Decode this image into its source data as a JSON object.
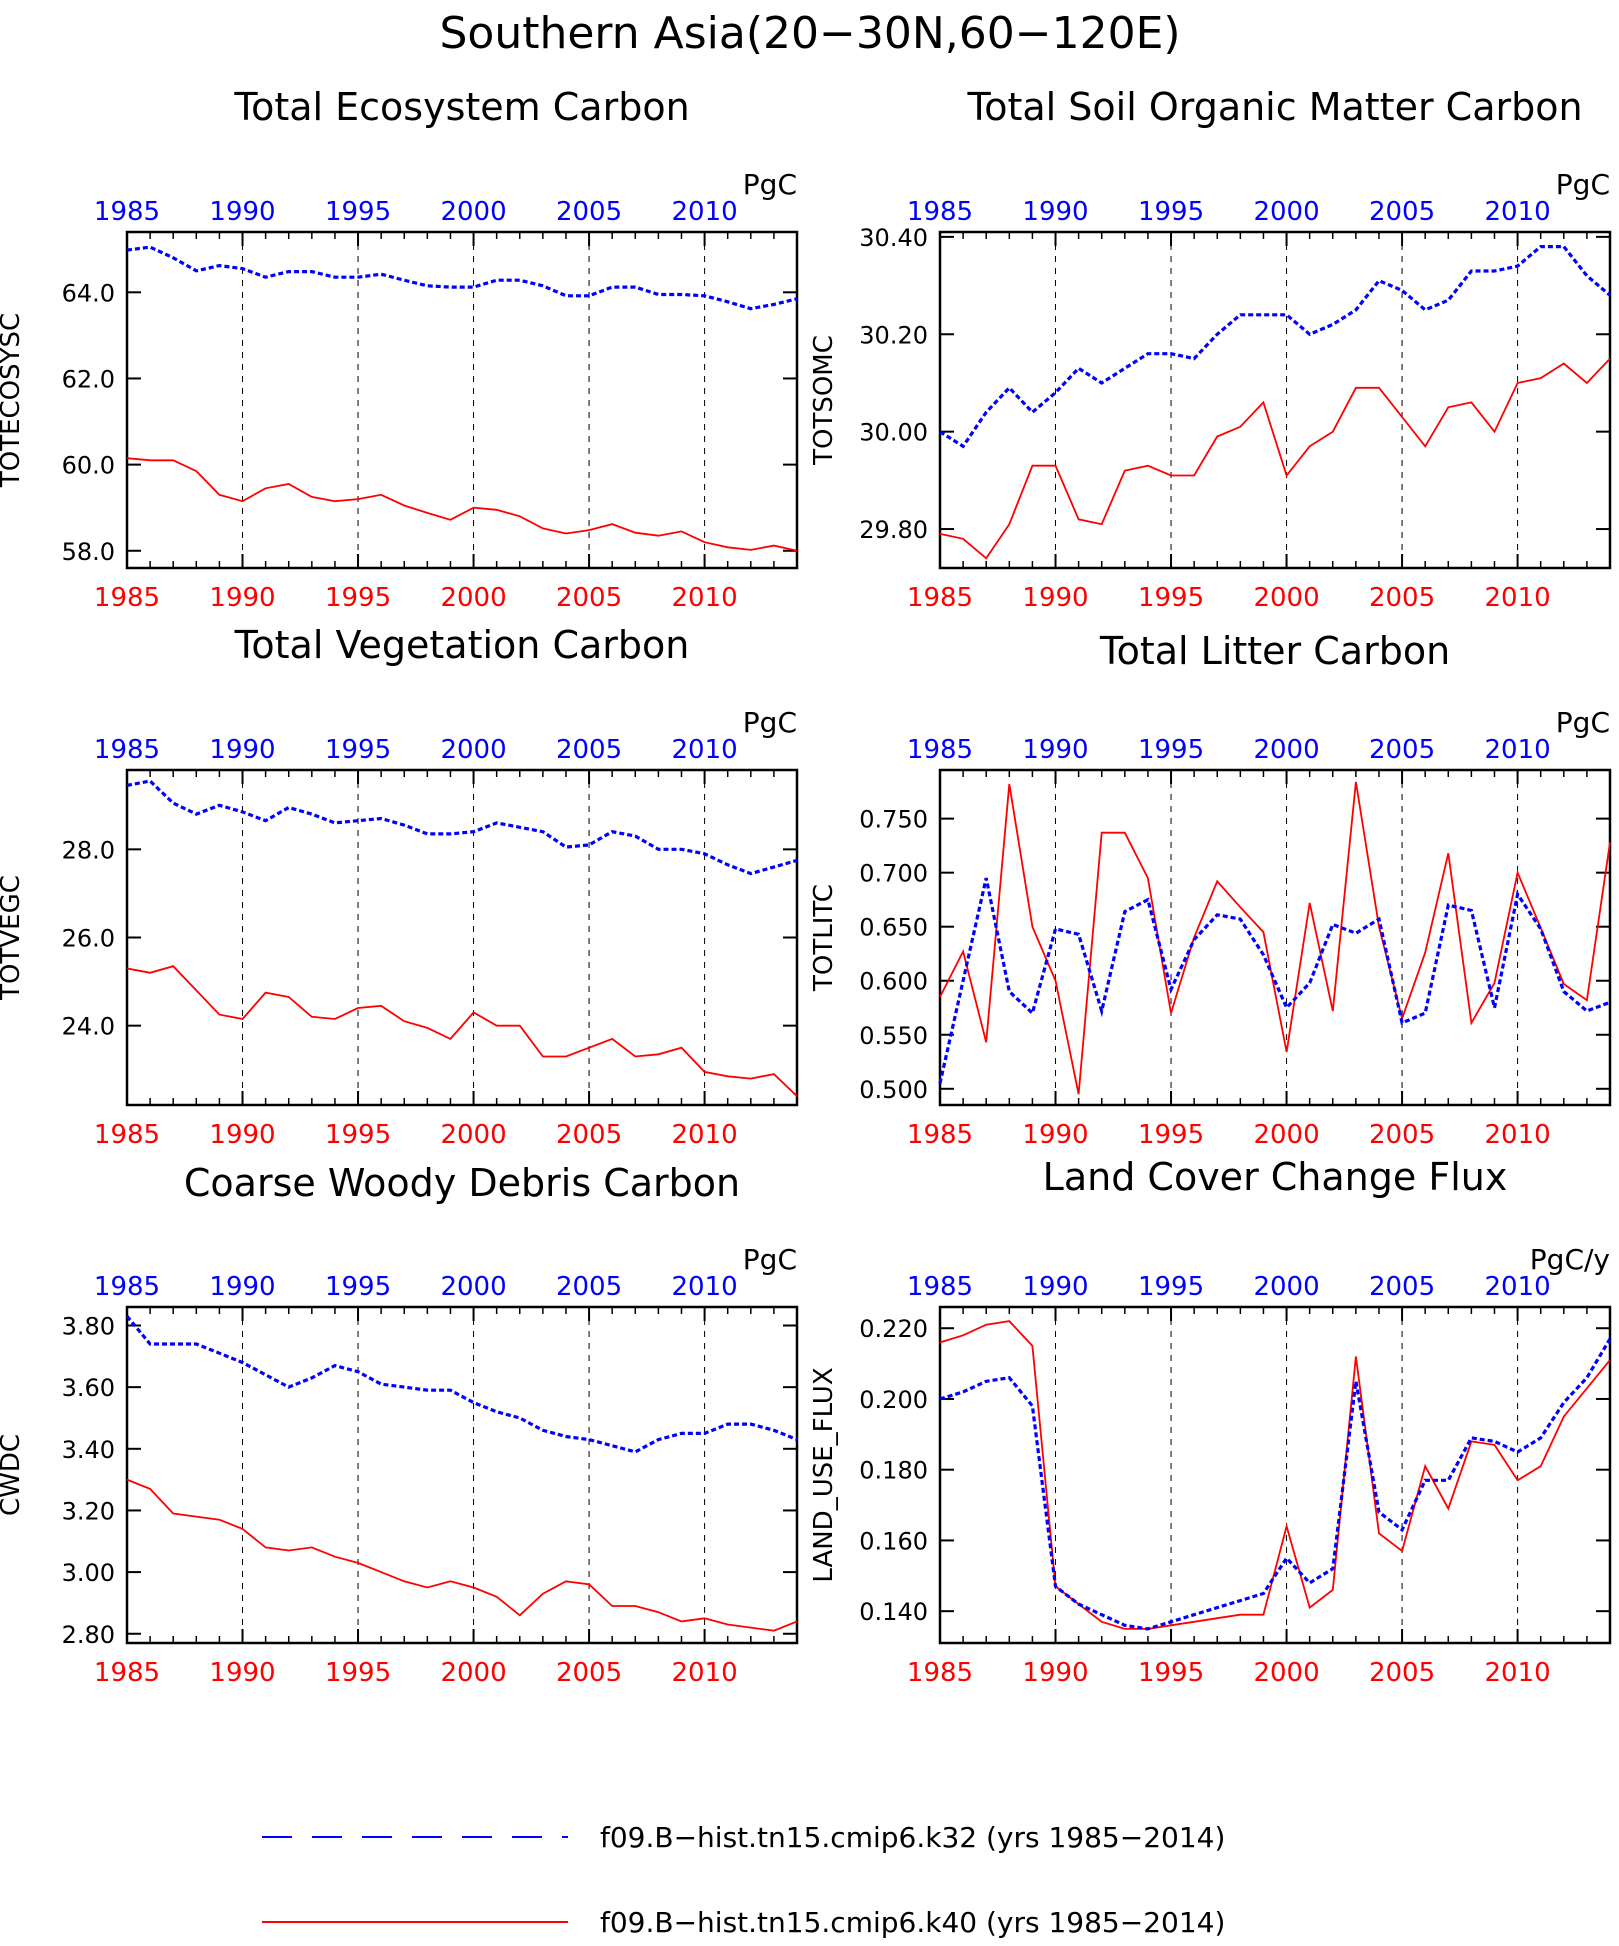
{
  "page_title": "Southern Asia(20−30N,60−120E)",
  "x_tick_labels": [
    "1985",
    "1990",
    "1995",
    "2000",
    "2005",
    "2010"
  ],
  "colors": {
    "k32": "#0000ff",
    "k40": "#ff0000",
    "axis": "#000000"
  },
  "legend": [
    {
      "label": "f09.B−hist.tn15.cmip6.k32 (yrs 1985−2014)",
      "color": "#0000ff",
      "style": "dashed"
    },
    {
      "label": "f09.B−hist.tn15.cmip6.k40 (yrs 1985−2014)",
      "color": "#ff0000",
      "style": "solid"
    }
  ],
  "chart_data": [
    {
      "type": "line",
      "title": "Total Ecosystem Carbon",
      "ylabel": "TOTECOSYSC",
      "unit": "PgC",
      "xlim": [
        1985,
        2014
      ],
      "ylim": [
        57.6,
        65.4
      ],
      "yticks": [
        58.0,
        60.0,
        62.0,
        64.0
      ],
      "ytick_labels": [
        "58.0",
        "60.0",
        "62.0",
        "64.0"
      ],
      "x": [
        1985,
        1986,
        1987,
        1988,
        1989,
        1990,
        1991,
        1992,
        1993,
        1994,
        1995,
        1996,
        1997,
        1998,
        1999,
        2000,
        2001,
        2002,
        2003,
        2004,
        2005,
        2006,
        2007,
        2008,
        2009,
        2010,
        2011,
        2012,
        2013,
        2014
      ],
      "series": [
        {
          "name": "f09.B−hist.tn15.cmip6.k32",
          "values": [
            64.98,
            65.05,
            64.8,
            64.5,
            64.62,
            64.55,
            64.35,
            64.48,
            64.48,
            64.35,
            64.35,
            64.42,
            64.28,
            64.15,
            64.12,
            64.12,
            64.28,
            64.28,
            64.15,
            63.92,
            63.92,
            64.12,
            64.12,
            63.95,
            63.95,
            63.92,
            63.78,
            63.62,
            63.72,
            63.85
          ]
        },
        {
          "name": "f09.B−hist.tn15.cmip6.k40",
          "values": [
            60.15,
            60.1,
            60.1,
            59.85,
            59.3,
            59.15,
            59.45,
            59.55,
            59.25,
            59.15,
            59.2,
            59.3,
            59.05,
            58.88,
            58.72,
            59.0,
            58.95,
            58.8,
            58.52,
            58.4,
            58.48,
            58.62,
            58.42,
            58.35,
            58.45,
            58.2,
            58.08,
            58.02,
            58.12,
            58.0
          ]
        }
      ]
    },
    {
      "type": "line",
      "title": "Total Soil Organic Matter Carbon",
      "ylabel": "TOTSOMC",
      "unit": "PgC",
      "xlim": [
        1985,
        2014
      ],
      "ylim": [
        29.72,
        30.41
      ],
      "yticks": [
        29.8,
        30.0,
        30.2,
        30.4
      ],
      "ytick_labels": [
        "29.80",
        "30.00",
        "30.20",
        "30.40"
      ],
      "x": [
        1985,
        1986,
        1987,
        1988,
        1989,
        1990,
        1991,
        1992,
        1993,
        1994,
        1995,
        1996,
        1997,
        1998,
        1999,
        2000,
        2001,
        2002,
        2003,
        2004,
        2005,
        2006,
        2007,
        2008,
        2009,
        2010,
        2011,
        2012,
        2013,
        2014
      ],
      "series": [
        {
          "name": "f09.B−hist.tn15.cmip6.k32",
          "values": [
            30.0,
            29.97,
            30.04,
            30.09,
            30.04,
            30.08,
            30.13,
            30.1,
            30.13,
            30.16,
            30.16,
            30.15,
            30.2,
            30.24,
            30.24,
            30.24,
            30.2,
            30.22,
            30.25,
            30.31,
            30.29,
            30.25,
            30.27,
            30.33,
            30.33,
            30.34,
            30.38,
            30.38,
            30.32,
            30.28
          ]
        },
        {
          "name": "f09.B−hist.tn15.cmip6.k40",
          "values": [
            29.79,
            29.78,
            29.74,
            29.81,
            29.93,
            29.93,
            29.82,
            29.81,
            29.92,
            29.93,
            29.91,
            29.91,
            29.99,
            30.01,
            30.06,
            29.91,
            29.97,
            30.0,
            30.09,
            30.09,
            30.03,
            29.97,
            30.05,
            30.06,
            30.0,
            30.1,
            30.11,
            30.14,
            30.1,
            30.15
          ]
        }
      ]
    },
    {
      "type": "line",
      "title": "Total Vegetation Carbon",
      "ylabel": "TOTVEGC",
      "unit": "PgC",
      "xlim": [
        1985,
        2014
      ],
      "ylim": [
        22.2,
        29.8
      ],
      "yticks": [
        24.0,
        26.0,
        28.0
      ],
      "ytick_labels": [
        "24.0",
        "26.0",
        "28.0"
      ],
      "x": [
        1985,
        1986,
        1987,
        1988,
        1989,
        1990,
        1991,
        1992,
        1993,
        1994,
        1995,
        1996,
        1997,
        1998,
        1999,
        2000,
        2001,
        2002,
        2003,
        2004,
        2005,
        2006,
        2007,
        2008,
        2009,
        2010,
        2011,
        2012,
        2013,
        2014
      ],
      "series": [
        {
          "name": "f09.B−hist.tn15.cmip6.k32",
          "values": [
            29.45,
            29.55,
            29.05,
            28.8,
            29.0,
            28.85,
            28.65,
            28.95,
            28.8,
            28.6,
            28.65,
            28.7,
            28.55,
            28.35,
            28.35,
            28.4,
            28.6,
            28.5,
            28.4,
            28.05,
            28.1,
            28.4,
            28.3,
            28.0,
            28.0,
            27.9,
            27.65,
            27.45,
            27.6,
            27.75
          ]
        },
        {
          "name": "f09.B−hist.tn15.cmip6.k40",
          "values": [
            25.3,
            25.2,
            25.35,
            24.8,
            24.25,
            24.15,
            24.75,
            24.65,
            24.2,
            24.15,
            24.4,
            24.45,
            24.1,
            23.95,
            23.7,
            24.3,
            24.0,
            24.0,
            23.3,
            23.3,
            23.5,
            23.7,
            23.3,
            23.35,
            23.5,
            22.95,
            22.85,
            22.8,
            22.9,
            22.4
          ]
        }
      ]
    },
    {
      "type": "line",
      "title": "Total Litter Carbon",
      "ylabel": "TOTLITC",
      "unit": "PgC",
      "xlim": [
        1985,
        2014
      ],
      "ylim": [
        0.485,
        0.795
      ],
      "yticks": [
        0.5,
        0.55,
        0.6,
        0.65,
        0.7,
        0.75
      ],
      "ytick_labels": [
        "0.500",
        "0.550",
        "0.600",
        "0.650",
        "0.700",
        "0.750"
      ],
      "x": [
        1985,
        1986,
        1987,
        1988,
        1989,
        1990,
        1991,
        1992,
        1993,
        1994,
        1995,
        1996,
        1997,
        1998,
        1999,
        2000,
        2001,
        2002,
        2003,
        2004,
        2005,
        2006,
        2007,
        2008,
        2009,
        2010,
        2011,
        2012,
        2013,
        2014
      ],
      "series": [
        {
          "name": "f09.B−hist.tn15.cmip6.k32",
          "values": [
            0.505,
            0.6,
            0.695,
            0.59,
            0.57,
            0.648,
            0.643,
            0.572,
            0.664,
            0.675,
            0.592,
            0.638,
            0.661,
            0.657,
            0.624,
            0.575,
            0.598,
            0.652,
            0.644,
            0.657,
            0.561,
            0.57,
            0.67,
            0.665,
            0.575,
            0.68,
            0.648,
            0.59,
            0.572,
            0.58
          ]
        },
        {
          "name": "f09.B−hist.tn15.cmip6.k40",
          "values": [
            0.585,
            0.627,
            0.543,
            0.782,
            0.65,
            0.6,
            0.495,
            0.737,
            0.737,
            0.695,
            0.57,
            0.64,
            0.692,
            0.668,
            0.645,
            0.534,
            0.672,
            0.572,
            0.784,
            0.65,
            0.565,
            0.626,
            0.718,
            0.561,
            0.598,
            0.7,
            0.649,
            0.597,
            0.582,
            0.728
          ]
        }
      ]
    },
    {
      "type": "line",
      "title": "Coarse Woody Debris Carbon",
      "ylabel": "CWDC",
      "unit": "PgC",
      "xlim": [
        1985,
        2014
      ],
      "ylim": [
        2.77,
        3.86
      ],
      "yticks": [
        2.8,
        3.0,
        3.2,
        3.4,
        3.6,
        3.8
      ],
      "ytick_labels": [
        "2.80",
        "3.00",
        "3.20",
        "3.40",
        "3.60",
        "3.80"
      ],
      "x": [
        1985,
        1986,
        1987,
        1988,
        1989,
        1990,
        1991,
        1992,
        1993,
        1994,
        1995,
        1996,
        1997,
        1998,
        1999,
        2000,
        2001,
        2002,
        2003,
        2004,
        2005,
        2006,
        2007,
        2008,
        2009,
        2010,
        2011,
        2012,
        2013,
        2014
      ],
      "series": [
        {
          "name": "f09.B−hist.tn15.cmip6.k32",
          "values": [
            3.83,
            3.74,
            3.74,
            3.74,
            3.71,
            3.68,
            3.64,
            3.6,
            3.63,
            3.67,
            3.65,
            3.61,
            3.6,
            3.59,
            3.59,
            3.55,
            3.52,
            3.5,
            3.46,
            3.44,
            3.43,
            3.41,
            3.39,
            3.43,
            3.45,
            3.45,
            3.48,
            3.48,
            3.46,
            3.43
          ]
        },
        {
          "name": "f09.B−hist.tn15.cmip6.k40",
          "values": [
            3.3,
            3.27,
            3.19,
            3.18,
            3.17,
            3.14,
            3.08,
            3.07,
            3.08,
            3.05,
            3.03,
            3.0,
            2.97,
            2.95,
            2.97,
            2.95,
            2.92,
            2.86,
            2.93,
            2.97,
            2.96,
            2.89,
            2.89,
            2.87,
            2.84,
            2.85,
            2.83,
            2.82,
            2.81,
            2.84
          ]
        }
      ]
    },
    {
      "type": "line",
      "title": "Land Cover Change Flux",
      "ylabel": "LAND_USE_FLUX",
      "unit": "PgC/y",
      "xlim": [
        1985,
        2014
      ],
      "ylim": [
        0.131,
        0.226
      ],
      "yticks": [
        0.14,
        0.16,
        0.18,
        0.2,
        0.22
      ],
      "ytick_labels": [
        "0.140",
        "0.160",
        "0.180",
        "0.200",
        "0.220"
      ],
      "x": [
        1985,
        1986,
        1987,
        1988,
        1989,
        1990,
        1991,
        1992,
        1993,
        1994,
        1995,
        1996,
        1997,
        1998,
        1999,
        2000,
        2001,
        2002,
        2003,
        2004,
        2005,
        2006,
        2007,
        2008,
        2009,
        2010,
        2011,
        2012,
        2013,
        2014
      ],
      "series": [
        {
          "name": "f09.B−hist.tn15.cmip6.k32",
          "values": [
            0.2,
            0.202,
            0.205,
            0.206,
            0.198,
            0.147,
            0.142,
            0.139,
            0.136,
            0.135,
            0.137,
            0.139,
            0.141,
            0.143,
            0.145,
            0.155,
            0.148,
            0.152,
            0.205,
            0.168,
            0.163,
            0.177,
            0.177,
            0.189,
            0.188,
            0.185,
            0.189,
            0.199,
            0.206,
            0.217
          ]
        },
        {
          "name": "f09.B−hist.tn15.cmip6.k40",
          "values": [
            0.216,
            0.218,
            0.221,
            0.222,
            0.215,
            0.147,
            0.142,
            0.137,
            0.135,
            0.135,
            0.136,
            0.137,
            0.138,
            0.139,
            0.139,
            0.164,
            0.141,
            0.146,
            0.212,
            0.162,
            0.157,
            0.181,
            0.169,
            0.188,
            0.187,
            0.177,
            0.181,
            0.195,
            0.203,
            0.211
          ]
        }
      ]
    }
  ]
}
